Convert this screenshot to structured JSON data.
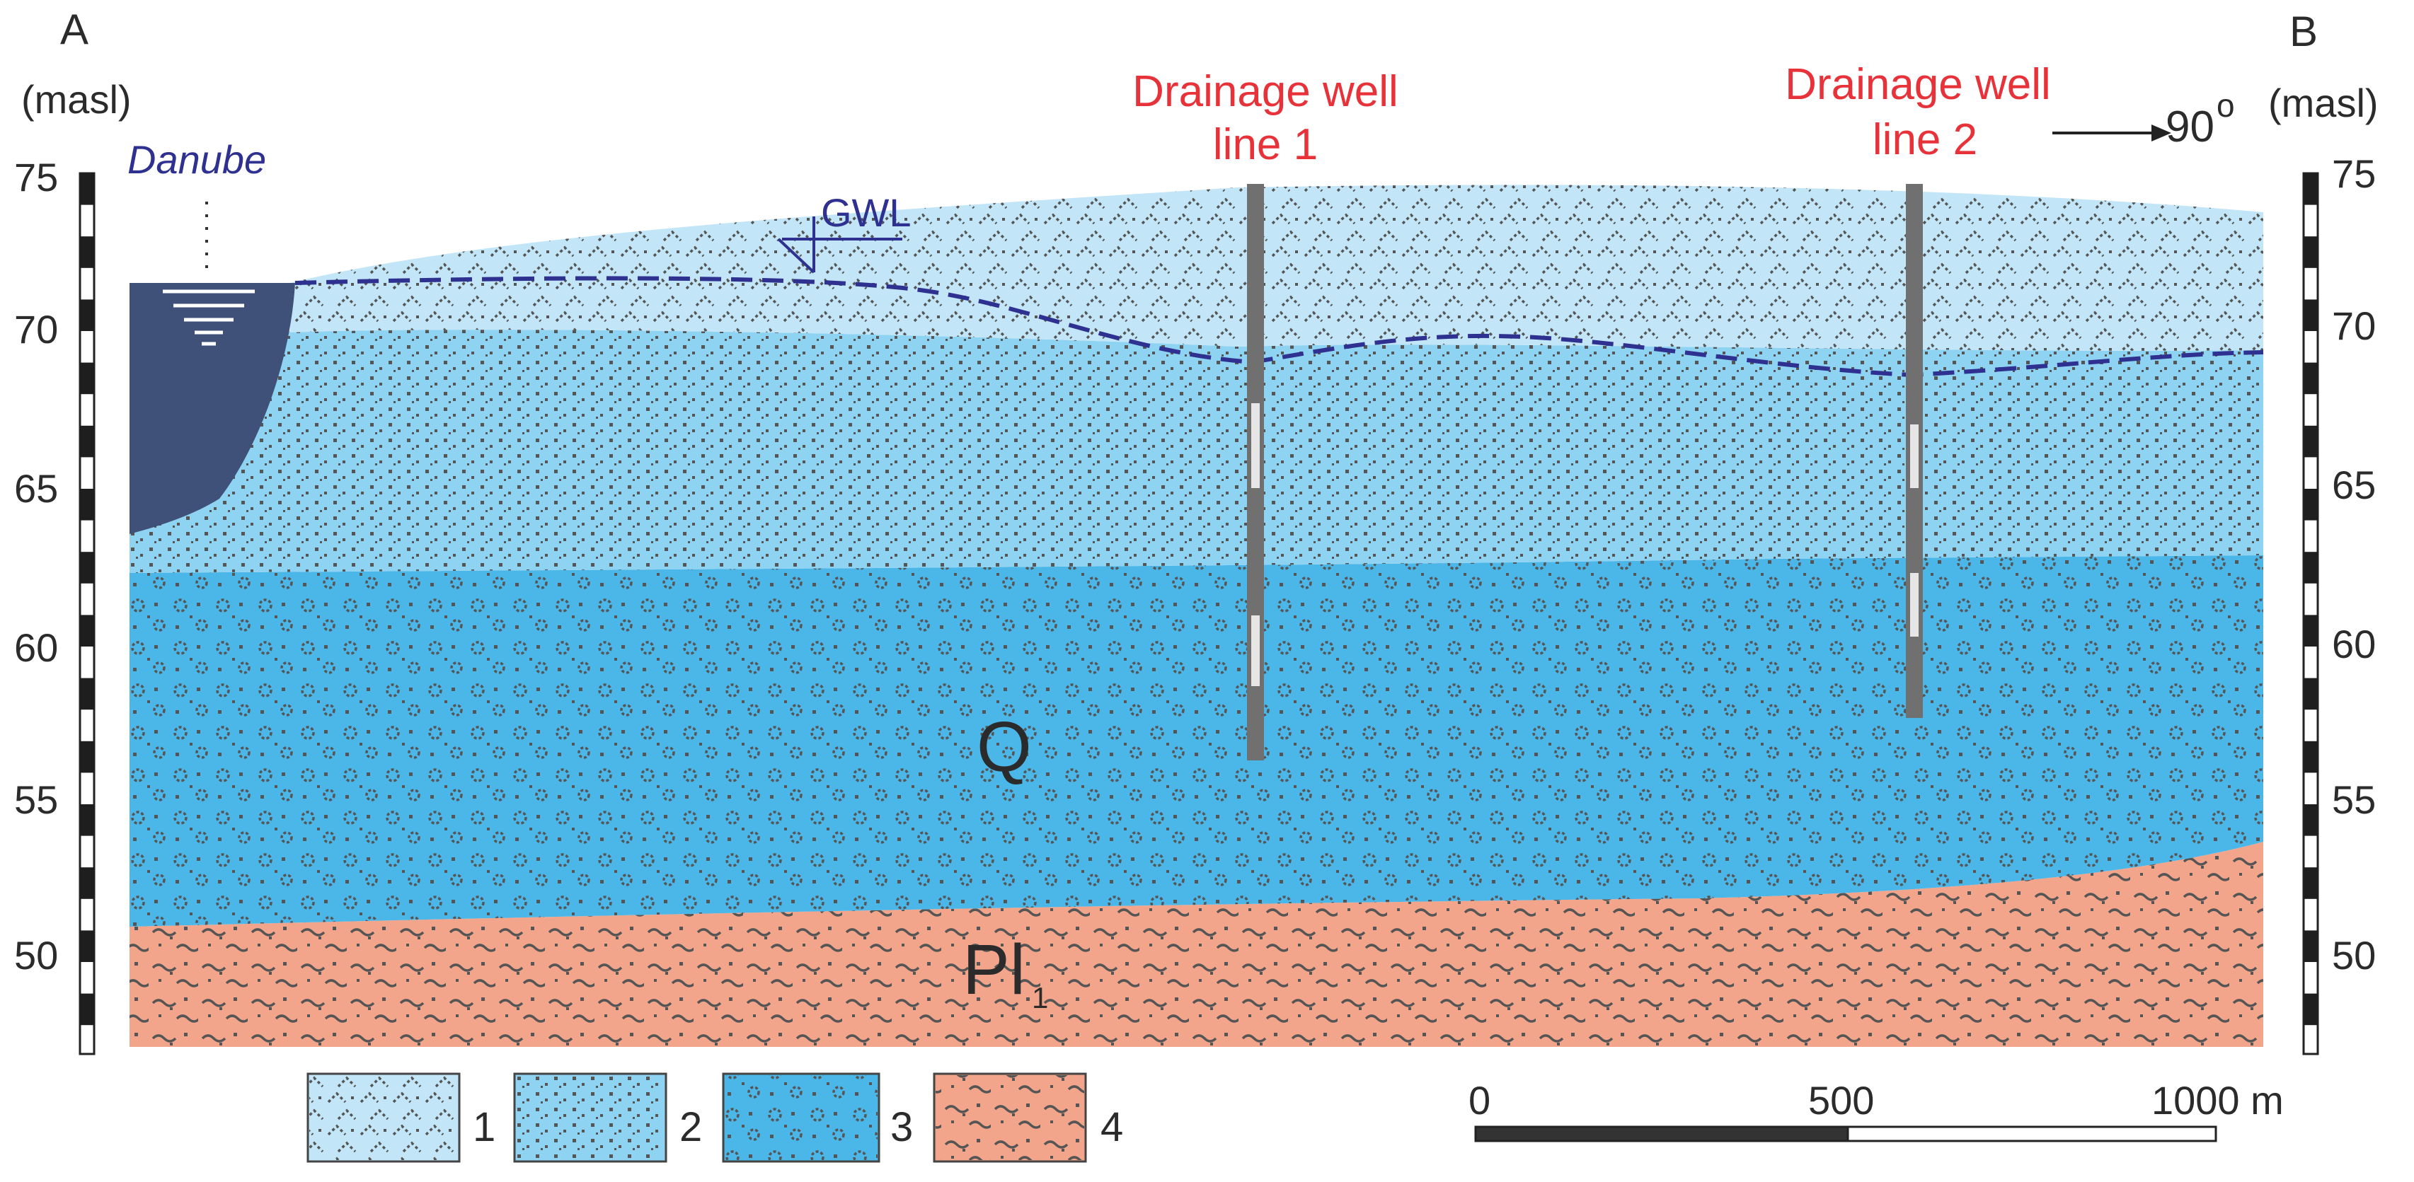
{
  "profile": {
    "left_end": "A",
    "right_end": "B",
    "left_unit": "(masl)",
    "right_unit": "(masl)",
    "axis_ticks": [
      "75",
      "70",
      "65",
      "60",
      "55",
      "50"
    ],
    "direction_label": "90",
    "direction_superscript": "o"
  },
  "river": {
    "name": "Danube"
  },
  "groundwater": {
    "label": "GWL"
  },
  "wells": [
    {
      "line1": "Drainage well",
      "line2": "line 1"
    },
    {
      "line1": "Drainage well",
      "line2": "line 2"
    }
  ],
  "units": {
    "quaternary": "Q",
    "pliocene": "Pl",
    "pliocene_sub": "1"
  },
  "legend": [
    {
      "number": "1"
    },
    {
      "number": "2"
    },
    {
      "number": "3"
    },
    {
      "number": "4"
    }
  ],
  "scale_bar": {
    "ticks": [
      "0",
      "500",
      "1000 m"
    ]
  },
  "colors": {
    "layer1": "#c2e6f7",
    "layer2": "#8fd3f3",
    "layer3": "#4bb6e8",
    "layer4": "#f2a58b",
    "river": "#3f5178",
    "accent_red": "#e8323a",
    "gwl_blue": "#2f3190"
  }
}
